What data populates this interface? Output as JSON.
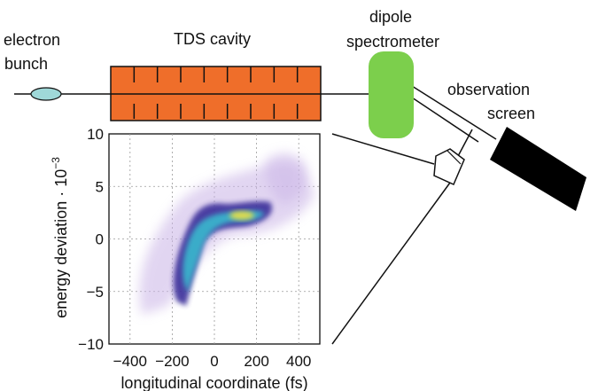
{
  "labels": {
    "electron_bunch_line1": "electron",
    "electron_bunch_line2": "bunch",
    "tds_cavity": "TDS cavity",
    "dipole_line1": "dipole",
    "dipole_line2": "spectrometer",
    "observation_line1": "observation",
    "observation_line2": "screen"
  },
  "colors": {
    "bunch": "#9fd8d8",
    "cavity": "#ef6e2a",
    "spectrometer": "#7ccf4c",
    "screen": "#000000",
    "beamline": "#111111"
  },
  "plot": {
    "xlabel": "longitudinal coordinate (fs)",
    "ylabel_main": "energy deviation · 10",
    "ylabel_exp": "−3",
    "xticks": [
      "−400",
      "−200",
      "0",
      "200",
      "400"
    ],
    "yticks": [
      "10",
      "5",
      "0",
      "−5",
      "−10"
    ]
  },
  "chart_data": {
    "type": "heatmap",
    "xlabel": "longitudinal coordinate (fs)",
    "ylabel": "energy deviation · 10^-3",
    "xlim": [
      -500,
      500
    ],
    "ylim": [
      -10,
      10
    ],
    "xticks": [
      -400,
      -200,
      0,
      200,
      400
    ],
    "yticks": [
      -10,
      -5,
      0,
      5,
      10
    ],
    "grid": true
  }
}
